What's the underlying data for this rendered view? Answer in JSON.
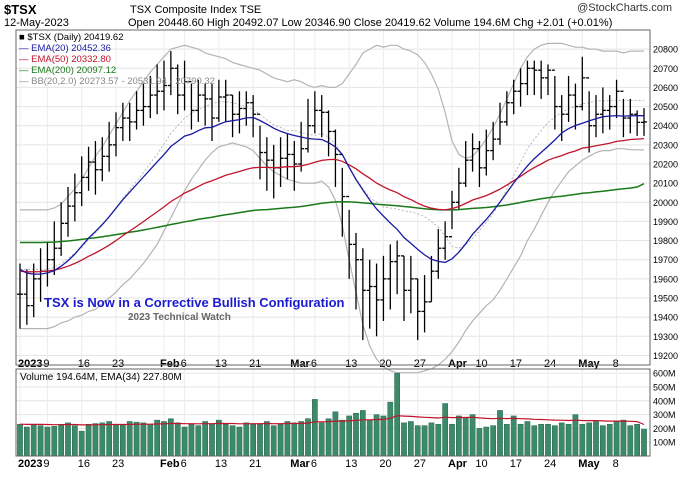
{
  "header": {
    "symbol": "$TSX",
    "name": "TSX Composite Index TSE",
    "date": "12-May-2023",
    "ohlc": "Open 20448.60 High 20492.07 Low 20346.90 Close 20419.62 Volume 194.6M Chg +2.01 (+0.01%)",
    "brand": "@StockCharts.com"
  },
  "legend": [
    {
      "text": "■ $TSX (Daily) 20419.62",
      "color": "#000000"
    },
    {
      "text": "— EMA(20) 20452.36",
      "color": "#1a1aa0"
    },
    {
      "text": "— EMA(50) 20332.80",
      "color": "#c0142c"
    },
    {
      "text": "— EMA(200) 20097.12",
      "color": "#1a7a1a"
    },
    {
      "text": "— BB(20,2.0) 20273.57 - 20531.94 - 20790.32",
      "color": "#888888"
    }
  ],
  "annotation": {
    "title": "TSX is Now in a Corrective Bullish Configuration",
    "subtitle": "2023 Technical Watch"
  },
  "volume_legend": "Volume 194.64M, EMA(34) 227.80M",
  "colors": {
    "price": "#000000",
    "ema20": "#1a1aa0",
    "ema50": "#c0142c",
    "ema200": "#1a7a1a",
    "bb": "#b4b4b4",
    "bbmid": "#aaaaaa",
    "volume": "#3c8a6a",
    "volema": "#c0142c",
    "annotation": "#1a1ad0"
  },
  "chart_data": [
    {
      "type": "ohlc",
      "x": [
        "2023-01-03",
        "2023-01-04",
        "2023-01-05",
        "2023-01-06",
        "2023-01-09",
        "2023-01-10",
        "2023-01-11",
        "2023-01-12",
        "2023-01-13",
        "2023-01-16",
        "2023-01-17",
        "2023-01-18",
        "2023-01-19",
        "2023-01-20",
        "2023-01-23",
        "2023-01-24",
        "2023-01-25",
        "2023-01-26",
        "2023-01-27",
        "2023-01-30",
        "2023-01-31",
        "2023-02-01",
        "2023-02-02",
        "2023-02-03",
        "2023-02-06",
        "2023-02-07",
        "2023-02-08",
        "2023-02-09",
        "2023-02-10",
        "2023-02-13",
        "2023-02-14",
        "2023-02-15",
        "2023-02-16",
        "2023-02-17",
        "2023-02-21",
        "2023-02-22",
        "2023-02-23",
        "2023-02-24",
        "2023-02-27",
        "2023-02-28",
        "2023-03-01",
        "2023-03-02",
        "2023-03-03",
        "2023-03-06",
        "2023-03-07",
        "2023-03-08",
        "2023-03-09",
        "2023-03-10",
        "2023-03-13",
        "2023-03-14",
        "2023-03-15",
        "2023-03-16",
        "2023-03-17",
        "2023-03-20",
        "2023-03-21",
        "2023-03-22",
        "2023-03-23",
        "2023-03-24",
        "2023-03-27",
        "2023-03-28",
        "2023-03-29",
        "2023-03-30",
        "2023-03-31",
        "2023-04-03",
        "2023-04-04",
        "2023-04-05",
        "2023-04-06",
        "2023-04-10",
        "2023-04-11",
        "2023-04-12",
        "2023-04-13",
        "2023-04-14",
        "2023-04-17",
        "2023-04-18",
        "2023-04-19",
        "2023-04-20",
        "2023-04-21",
        "2023-04-24",
        "2023-04-25",
        "2023-04-26",
        "2023-04-27",
        "2023-04-28",
        "2023-05-01",
        "2023-05-02",
        "2023-05-03",
        "2023-05-04",
        "2023-05-05",
        "2023-05-08",
        "2023-05-09",
        "2023-05-10",
        "2023-05-11",
        "2023-05-12"
      ],
      "close": [
        19520,
        19460,
        19600,
        19640,
        19700,
        19760,
        19890,
        19980,
        20050,
        20130,
        20210,
        20170,
        20240,
        20300,
        20390,
        20440,
        20420,
        20480,
        20500,
        20560,
        20580,
        20610,
        20700,
        20560,
        20630,
        20480,
        20560,
        20540,
        20440,
        20550,
        20560,
        20460,
        20490,
        20520,
        20460,
        20260,
        20220,
        20180,
        20230,
        20250,
        20200,
        20280,
        20400,
        20480,
        20470,
        20370,
        20250,
        20030,
        19780,
        19700,
        19540,
        19560,
        19490,
        19600,
        19690,
        19720,
        19540,
        19600,
        19430,
        19480,
        19640,
        19760,
        19820,
        20000,
        20100,
        20220,
        20280,
        20180,
        20270,
        20330,
        20420,
        20520,
        20580,
        20620,
        20700,
        20690,
        20650,
        20690,
        20500,
        20460,
        20560,
        20500,
        20650,
        20400,
        20460,
        20480,
        20500,
        20580,
        20440,
        20460,
        20417.61,
        20419.62
      ],
      "high": [
        19680,
        19650,
        19680,
        19760,
        19790,
        19900,
        20000,
        20080,
        20150,
        20240,
        20290,
        20320,
        20340,
        20420,
        20470,
        20520,
        20520,
        20580,
        20620,
        20660,
        20720,
        20740,
        20790,
        20720,
        20740,
        20620,
        20640,
        20620,
        20620,
        20640,
        20640,
        20560,
        20580,
        20580,
        20560,
        20400,
        20340,
        20300,
        20340,
        20360,
        20320,
        20420,
        20540,
        20580,
        20560,
        20480,
        20380,
        20180,
        19960,
        19840,
        19760,
        19700,
        19680,
        19720,
        19780,
        19800,
        19720,
        19720,
        19600,
        19620,
        19720,
        19860,
        19900,
        20060,
        20180,
        20320,
        20360,
        20320,
        20380,
        20420,
        20520,
        20580,
        20640,
        20700,
        20740,
        20740,
        20740,
        20720,
        20660,
        20560,
        20660,
        20620,
        20760,
        20580,
        20560,
        20600,
        20560,
        20640,
        20540,
        20540,
        20480,
        20492.07
      ],
      "low": [
        19340,
        19360,
        19400,
        19480,
        19560,
        19620,
        19720,
        19820,
        19900,
        19980,
        20060,
        20040,
        20110,
        20160,
        20240,
        20320,
        20320,
        20380,
        20400,
        20440,
        20460,
        20480,
        20560,
        20460,
        20480,
        20380,
        20420,
        20400,
        20320,
        20420,
        20420,
        20340,
        20360,
        20400,
        20340,
        20120,
        20060,
        20020,
        20080,
        20120,
        20060,
        20160,
        20260,
        20360,
        20340,
        20240,
        20080,
        19820,
        19600,
        19440,
        19280,
        19340,
        19300,
        19380,
        19440,
        19520,
        19380,
        19420,
        19280,
        19320,
        19480,
        19600,
        19700,
        19860,
        19960,
        20080,
        20160,
        20080,
        20140,
        20220,
        20300,
        20400,
        20460,
        20500,
        20560,
        20560,
        20540,
        20560,
        20380,
        20320,
        20420,
        20380,
        20480,
        20260,
        20340,
        20360,
        20380,
        20440,
        20340,
        20360,
        20346.9,
        20346.9
      ],
      "ema20": [
        19650,
        19630,
        19625,
        19625,
        19631,
        19643,
        19666,
        19695,
        19730,
        19771,
        19813,
        19847,
        19884,
        19924,
        19969,
        20014,
        20053,
        20093,
        20132,
        20172,
        20211,
        20249,
        20292,
        20318,
        20346,
        20356,
        20374,
        20389,
        20391,
        20407,
        20421,
        20426,
        20432,
        20441,
        20443,
        20427,
        20408,
        20387,
        20371,
        20359,
        20349,
        20341,
        20333,
        20330,
        20328,
        20312,
        20289,
        20250,
        20183,
        20119,
        20064,
        20012,
        19965,
        19928,
        19892,
        19859,
        19816,
        19785,
        19754,
        19725,
        19702,
        19691,
        19686,
        19705,
        19739,
        19783,
        19833,
        19872,
        19910,
        19954,
        20001,
        20051,
        20101,
        20147,
        20190,
        20228,
        20260,
        20292,
        20326,
        20362,
        20385,
        20401,
        20413,
        20425,
        20436,
        20447,
        20450,
        20453,
        20450,
        20452,
        20452.36,
        20452.36
      ],
      "ema50": [
        19640,
        19637,
        19637,
        19638,
        19641,
        19646,
        19654,
        19666,
        19681,
        19698,
        19718,
        19735,
        19755,
        19776,
        19800,
        19826,
        19850,
        19874,
        19899,
        19925,
        19950,
        19976,
        20004,
        20025,
        20048,
        20064,
        20083,
        20100,
        20112,
        20127,
        20141,
        20151,
        20161,
        20172,
        20180,
        20182,
        20182,
        20181,
        20183,
        20186,
        20186,
        20190,
        20198,
        20209,
        20219,
        20223,
        20224,
        20214,
        20196,
        20175,
        20149,
        20126,
        20100,
        20081,
        20064,
        20050,
        20029,
        20014,
        19995,
        19980,
        19969,
        19963,
        19960,
        19967,
        19978,
        19994,
        20012,
        20023,
        20035,
        20051,
        20069,
        20090,
        20113,
        20136,
        20160,
        20181,
        20200,
        20220,
        20233,
        20244,
        20258,
        20268,
        20283,
        20288,
        20295,
        20302,
        20308,
        20318,
        20322,
        20328,
        20330,
        20332.8
      ],
      "ema200": [
        19790,
        19790,
        19790,
        19790,
        19791,
        19792,
        19795,
        19798,
        19802,
        19806,
        19811,
        19815,
        19820,
        19825,
        19831,
        19837,
        19843,
        19849,
        19855,
        19862,
        19869,
        19876,
        19884,
        19890,
        19898,
        19904,
        19911,
        19917,
        19922,
        19929,
        19935,
        19940,
        19946,
        19952,
        19957,
        19960,
        19962,
        19965,
        19968,
        19971,
        19974,
        19978,
        19983,
        19989,
        19995,
        19999,
        20002,
        20003,
        20002,
        20000,
        19997,
        19994,
        19990,
        19987,
        19984,
        19982,
        19978,
        19975,
        19970,
        19966,
        19963,
        19961,
        19960,
        19960,
        19962,
        19965,
        19968,
        19970,
        19973,
        19977,
        19981,
        19986,
        19992,
        19999,
        20006,
        20012,
        20018,
        20024,
        20028,
        20032,
        20037,
        20041,
        20047,
        20050,
        20054,
        20058,
        20062,
        20067,
        20071,
        20074,
        20080,
        20097.12
      ],
      "bb_upper": [
        19960,
        19960,
        19960,
        19960,
        19960,
        19970,
        19990,
        20030,
        20070,
        20120,
        20180,
        20240,
        20290,
        20350,
        20410,
        20470,
        20530,
        20580,
        20630,
        20680,
        20720,
        20760,
        20800,
        20810,
        20820,
        20810,
        20800,
        20780,
        20770,
        20760,
        20750,
        20730,
        20720,
        20710,
        20700,
        20690,
        20670,
        20650,
        20640,
        20630,
        20640,
        20630,
        20610,
        20600,
        20610,
        20600,
        20600,
        20620,
        20670,
        20720,
        20780,
        20800,
        20820,
        20810,
        20820,
        20820,
        20800,
        20790,
        20770,
        20730,
        20670,
        20590,
        20470,
        20320,
        20250,
        20230,
        20240,
        20280,
        20330,
        20390,
        20460,
        20540,
        20620,
        20700,
        20760,
        20800,
        20820,
        20830,
        20830,
        20830,
        20820,
        20810,
        20810,
        20800,
        20800,
        20790,
        20790,
        20790,
        20780,
        20790,
        20790,
        20790.32
      ],
      "bb_lower": [
        19340,
        19340,
        19340,
        19340,
        19340,
        19350,
        19370,
        19380,
        19400,
        19410,
        19430,
        19440,
        19470,
        19500,
        19530,
        19570,
        19600,
        19640,
        19680,
        19730,
        19780,
        19850,
        19920,
        19990,
        20060,
        20120,
        20170,
        20220,
        20260,
        20290,
        20300,
        20310,
        20300,
        20290,
        20270,
        20230,
        20190,
        20160,
        20140,
        20120,
        20110,
        20100,
        20100,
        20100,
        20110,
        20080,
        20010,
        19880,
        19700,
        19530,
        19360,
        19250,
        19180,
        19140,
        19120,
        19110,
        19110,
        19110,
        19110,
        19120,
        19130,
        19150,
        19180,
        19220,
        19270,
        19330,
        19380,
        19420,
        19460,
        19490,
        19540,
        19600,
        19660,
        19720,
        19800,
        19860,
        19930,
        20000,
        20060,
        20110,
        20160,
        20190,
        20220,
        20240,
        20260,
        20270,
        20270,
        20280,
        20280,
        20275,
        20274,
        20273.57
      ],
      "xlabels": [
        "2023",
        "9",
        "16",
        "23",
        "Feb",
        "6",
        "13",
        "21",
        "Mar",
        "6",
        "13",
        "20",
        "27",
        "Apr",
        "10",
        "17",
        "24",
        "May",
        "8"
      ],
      "y_ticks": [
        19200,
        19300,
        19400,
        19500,
        19600,
        19700,
        19800,
        19900,
        20000,
        20100,
        20200,
        20300,
        20400,
        20500,
        20600,
        20700,
        20800
      ],
      "ylim": [
        19150,
        20900
      ],
      "grid": true,
      "legend_position": "top-left"
    },
    {
      "type": "bar",
      "x": [
        "2023-01-03",
        "2023-01-04",
        "2023-01-05",
        "2023-01-06",
        "2023-01-09",
        "2023-01-10",
        "2023-01-11",
        "2023-01-12",
        "2023-01-13",
        "2023-01-16",
        "2023-01-17",
        "2023-01-18",
        "2023-01-19",
        "2023-01-20",
        "2023-01-23",
        "2023-01-24",
        "2023-01-25",
        "2023-01-26",
        "2023-01-27",
        "2023-01-30",
        "2023-01-31",
        "2023-02-01",
        "2023-02-02",
        "2023-02-03",
        "2023-02-06",
        "2023-02-07",
        "2023-02-08",
        "2023-02-09",
        "2023-02-10",
        "2023-02-13",
        "2023-02-14",
        "2023-02-15",
        "2023-02-16",
        "2023-02-17",
        "2023-02-21",
        "2023-02-22",
        "2023-02-23",
        "2023-02-24",
        "2023-02-27",
        "2023-02-28",
        "2023-03-01",
        "2023-03-02",
        "2023-03-03",
        "2023-03-06",
        "2023-03-07",
        "2023-03-08",
        "2023-03-09",
        "2023-03-10",
        "2023-03-13",
        "2023-03-14",
        "2023-03-15",
        "2023-03-16",
        "2023-03-17",
        "2023-03-20",
        "2023-03-21",
        "2023-03-22",
        "2023-03-23",
        "2023-03-24",
        "2023-03-27",
        "2023-03-28",
        "2023-03-29",
        "2023-03-30",
        "2023-03-31",
        "2023-04-03",
        "2023-04-04",
        "2023-04-05",
        "2023-04-06",
        "2023-04-10",
        "2023-04-11",
        "2023-04-12",
        "2023-04-13",
        "2023-04-14",
        "2023-04-17",
        "2023-04-18",
        "2023-04-19",
        "2023-04-20",
        "2023-04-21",
        "2023-04-24",
        "2023-04-25",
        "2023-04-26",
        "2023-04-27",
        "2023-04-28",
        "2023-05-01",
        "2023-05-02",
        "2023-05-03",
        "2023-05-04",
        "2023-05-05",
        "2023-05-08",
        "2023-05-09",
        "2023-05-10",
        "2023-05-11",
        "2023-05-12"
      ],
      "values": [
        230,
        210,
        230,
        220,
        210,
        215,
        230,
        240,
        220,
        180,
        230,
        235,
        240,
        250,
        230,
        230,
        250,
        245,
        240,
        230,
        260,
        250,
        270,
        240,
        210,
        230,
        220,
        250,
        230,
        260,
        230,
        220,
        210,
        240,
        230,
        230,
        250,
        220,
        230,
        250,
        240,
        250,
        270,
        410,
        240,
        270,
        320,
        260,
        290,
        310,
        330,
        260,
        300,
        290,
        390,
        600,
        240,
        250,
        220,
        220,
        240,
        230,
        380,
        230,
        290,
        280,
        300,
        200,
        210,
        220,
        330,
        230,
        290,
        230,
        250,
        220,
        230,
        230,
        220,
        240,
        230,
        300,
        230,
        240,
        250,
        220,
        230,
        250,
        260,
        220,
        230,
        194.64
      ],
      "ema34": [
        230,
        229,
        229,
        229,
        228,
        227,
        227,
        228,
        228,
        225,
        225,
        226,
        227,
        228,
        228,
        228,
        229,
        230,
        230,
        230,
        232,
        233,
        235,
        235,
        234,
        234,
        233,
        234,
        234,
        236,
        235,
        235,
        233,
        234,
        234,
        234,
        235,
        234,
        234,
        235,
        235,
        236,
        238,
        248,
        248,
        249,
        253,
        253,
        255,
        258,
        262,
        262,
        264,
        266,
        273,
        292,
        289,
        287,
        283,
        280,
        278,
        275,
        281,
        278,
        279,
        279,
        281,
        276,
        272,
        270,
        273,
        271,
        272,
        270,
        269,
        266,
        264,
        262,
        260,
        259,
        257,
        259,
        257,
        256,
        256,
        254,
        253,
        253,
        253,
        251,
        249,
        227.8
      ],
      "y_ticks": [
        100,
        200,
        300,
        400,
        500,
        600
      ],
      "ylim": [
        0,
        630
      ],
      "grid": true
    }
  ]
}
